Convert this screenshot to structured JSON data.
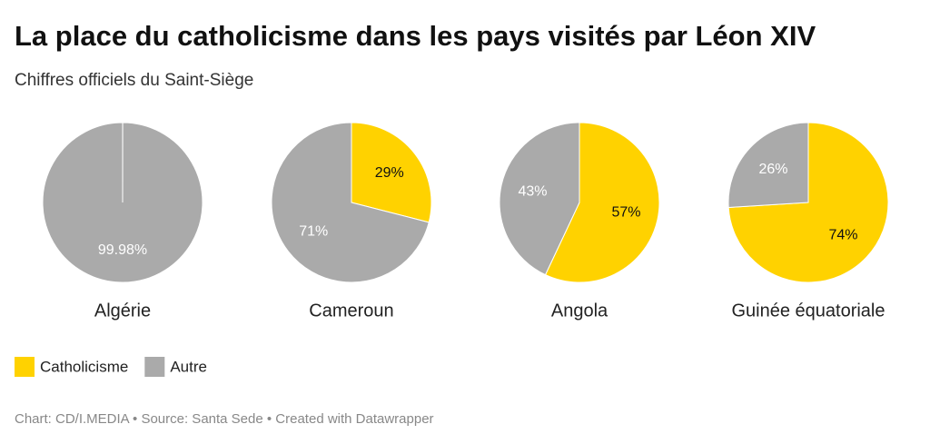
{
  "title": "La place du catholicisme dans les pays visités par Léon XIV",
  "subtitle": "Chiffres officiels du Saint-Siège",
  "footer": "Chart: CD/I.MEDIA • Source: Santa Sede • Created with Datawrapper",
  "chart_data": [
    {
      "type": "pie",
      "title": "Algérie",
      "categories": [
        "Catholicisme",
        "Autre"
      ],
      "colors": [
        "#ffd200",
        "#aaaaaa"
      ],
      "values": [
        0.02,
        99.98
      ],
      "value_labels": [
        null,
        "99.98%"
      ]
    },
    {
      "type": "pie",
      "title": "Cameroun",
      "categories": [
        "Catholicisme",
        "Autre"
      ],
      "colors": [
        "#ffd200",
        "#aaaaaa"
      ],
      "values": [
        29,
        71
      ],
      "value_labels": [
        "29%",
        "71%"
      ]
    },
    {
      "type": "pie",
      "title": "Angola",
      "categories": [
        "Catholicisme",
        "Autre"
      ],
      "colors": [
        "#ffd200",
        "#aaaaaa"
      ],
      "values": [
        57,
        43
      ],
      "value_labels": [
        "57%",
        "43%"
      ]
    },
    {
      "type": "pie",
      "title": "Guinée équatoriale",
      "categories": [
        "Catholicisme",
        "Autre"
      ],
      "colors": [
        "#ffd200",
        "#aaaaaa"
      ],
      "values": [
        74,
        26
      ],
      "value_labels": [
        "74%",
        "26%"
      ]
    }
  ]
}
